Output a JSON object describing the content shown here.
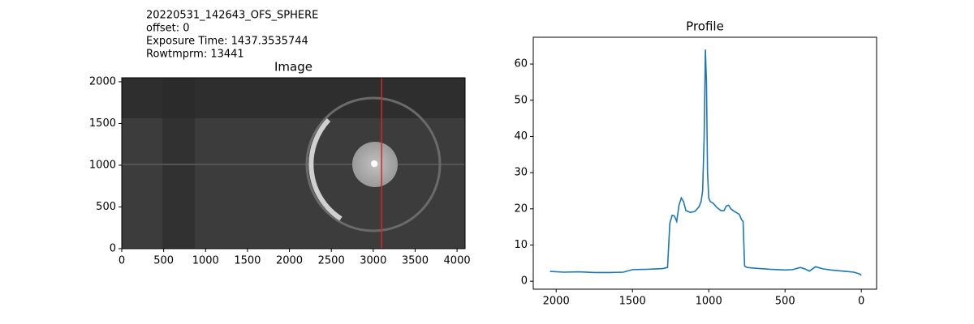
{
  "chart_data": [
    {
      "type": "image",
      "title": "Image",
      "annotations": [
        "20220531_142643_OFS_SPHERE",
        "offset: 0",
        "Exposure Time: 1437.3535744",
        "Rowtmprm: 13441"
      ],
      "xlim": [
        0,
        4096
      ],
      "ylim": [
        0,
        2048
      ],
      "xticks": [
        0,
        500,
        1000,
        1500,
        2000,
        2500,
        3000,
        3500,
        4000
      ],
      "yticks": [
        0,
        500,
        1000,
        1500,
        2000
      ],
      "marker_x": 3100,
      "marker_color": "#d62728"
    },
    {
      "type": "line",
      "title": "Profile",
      "xlim": [
        2150,
        -100
      ],
      "ylim": [
        -2.2,
        67.4
      ],
      "xticks": [
        2000,
        1500,
        1000,
        500,
        0
      ],
      "yticks": [
        0,
        10,
        20,
        30,
        40,
        50,
        60
      ],
      "series": [
        {
          "color": "#1f77b4",
          "x": [
            2040,
            1950,
            1850,
            1750,
            1650,
            1560,
            1500,
            1400,
            1300,
            1270,
            1255,
            1240,
            1225,
            1210,
            1195,
            1180,
            1165,
            1150,
            1120,
            1090,
            1065,
            1050,
            1040,
            1030,
            1022,
            1015,
            1008,
            1000,
            990,
            970,
            950,
            920,
            900,
            885,
            870,
            855,
            840,
            820,
            800,
            785,
            775,
            765,
            750,
            700,
            600,
            500,
            450,
            400,
            370,
            340,
            300,
            250,
            200,
            150,
            100,
            50,
            10,
            0
          ],
          "values": [
            2.7,
            2.5,
            2.6,
            2.4,
            2.4,
            2.5,
            3.2,
            3.3,
            3.5,
            3.8,
            16,
            18.2,
            18,
            16.5,
            21,
            23,
            22,
            19.5,
            19,
            19.3,
            20.5,
            22,
            25,
            40,
            64,
            55,
            30,
            23,
            22,
            21.5,
            20.5,
            19.5,
            19.5,
            20.8,
            21,
            20,
            19.5,
            19,
            18.5,
            17,
            16.5,
            4.2,
            3.8,
            3.6,
            3.3,
            3.1,
            3.2,
            3.8,
            3.4,
            2.8,
            4,
            3.4,
            3.1,
            2.9,
            2.7,
            2.5,
            2.0,
            1.6
          ]
        }
      ]
    }
  ]
}
